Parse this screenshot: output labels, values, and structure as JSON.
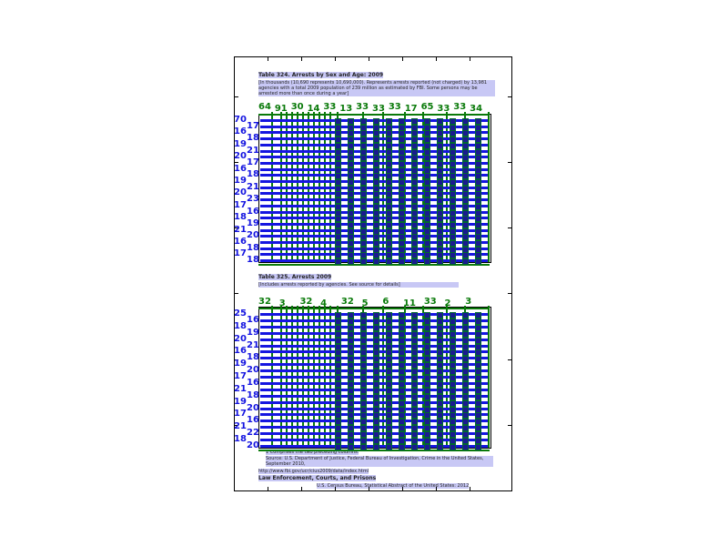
{
  "page": {
    "table1": {
      "title": "Table 324. Arrests by Sex and Age: 2009",
      "note": "[In thousands (10,690 represents 10,690,000). Represents arrests reported (not charged) by 13,981 agencies with a total 2009 population of 239 million as estimated by FBI. Some persons may be arrested more than once during a year]",
      "top_labels": [
        "64",
        "91",
        "30",
        "14",
        "33",
        "13",
        "33",
        "33",
        "33",
        "17",
        "65",
        "33",
        "33",
        "34"
      ],
      "row_labels": [
        "70",
        "17",
        "16",
        "18",
        "19",
        "21",
        "20",
        "17",
        "16",
        "18",
        "19",
        "21",
        "20",
        "23",
        "17",
        "16",
        "18",
        "19",
        "21",
        "20",
        "16",
        "18",
        "17",
        "18"
      ]
    },
    "table2": {
      "title": "Table 325. Arrests 2009",
      "note": "[Includes arrests reported by agencies. See source for details]",
      "top_labels": [
        "32",
        "3",
        "32",
        "4",
        "32",
        "5",
        "6",
        "11",
        "33",
        "2",
        "3"
      ],
      "row_labels": [
        "25",
        "16",
        "18",
        "19",
        "20",
        "21",
        "16",
        "18",
        "19",
        "20",
        "17",
        "16",
        "21",
        "18",
        "19",
        "20",
        "17",
        "16",
        "21",
        "22",
        "18",
        "20"
      ]
    },
    "footer": {
      "note1": "1 Comprises the two preceding columns.",
      "source": "Source: U.S. Department of Justice, Federal Bureau of Investigation, Crime in the United States, September 2010,",
      "url": "http://www.fbi.gov/ucr/cius2009/data/index.html",
      "section": "Law Enforcement, Courts, and Prisons",
      "publisher": "U.S. Census Bureau, Statistical Abstract of the United States: 2012"
    }
  },
  "colors": {
    "highlight": "#c8c8f5",
    "box": "#0a7a0a",
    "row": "#1515e0"
  }
}
